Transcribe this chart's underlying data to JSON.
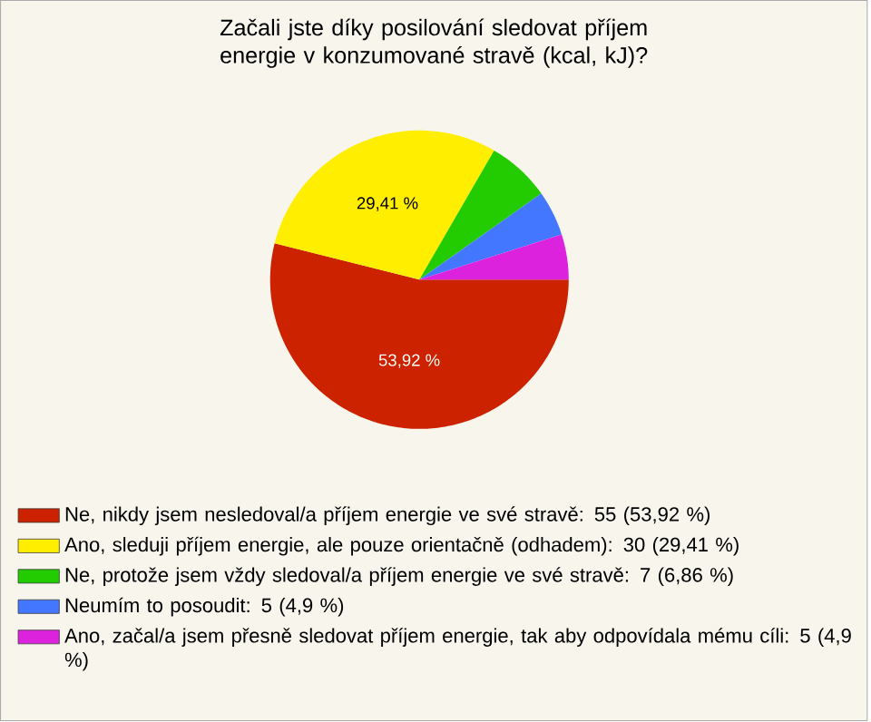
{
  "chart_data": {
    "type": "pie",
    "title": "Začali jste díky posilování sledovat příjem energie v konzumované stravě (kcal, kJ)?",
    "categories": [
      "Ne, nikdy jsem nesledoval/a příjem energie ve své stravě: 55 (53,92 %)",
      "Ano, sleduji příjem energie, ale pouze orientačně (odhadem): 30 (29,41 %)",
      "Ne, protože jsem vždy sledoval/a příjem energie ve své stravě: 7 (6,86 %)",
      "Neumím to posoudit: 5 (4,9 %)",
      "Ano, začal/a jsem přesně sledovat příjem energie, tak aby odpovídala mému cíli: 5 (4,9 %)"
    ],
    "values": [
      53.92,
      29.41,
      6.86,
      4.9,
      4.9
    ],
    "colors": [
      "#cc2200",
      "#ffee00",
      "#22cc00",
      "#4477ff",
      "#dd22dd"
    ],
    "value_labels": [
      "53,92 %",
      "29,41 %",
      null,
      null,
      null
    ],
    "legend": "bottom"
  }
}
